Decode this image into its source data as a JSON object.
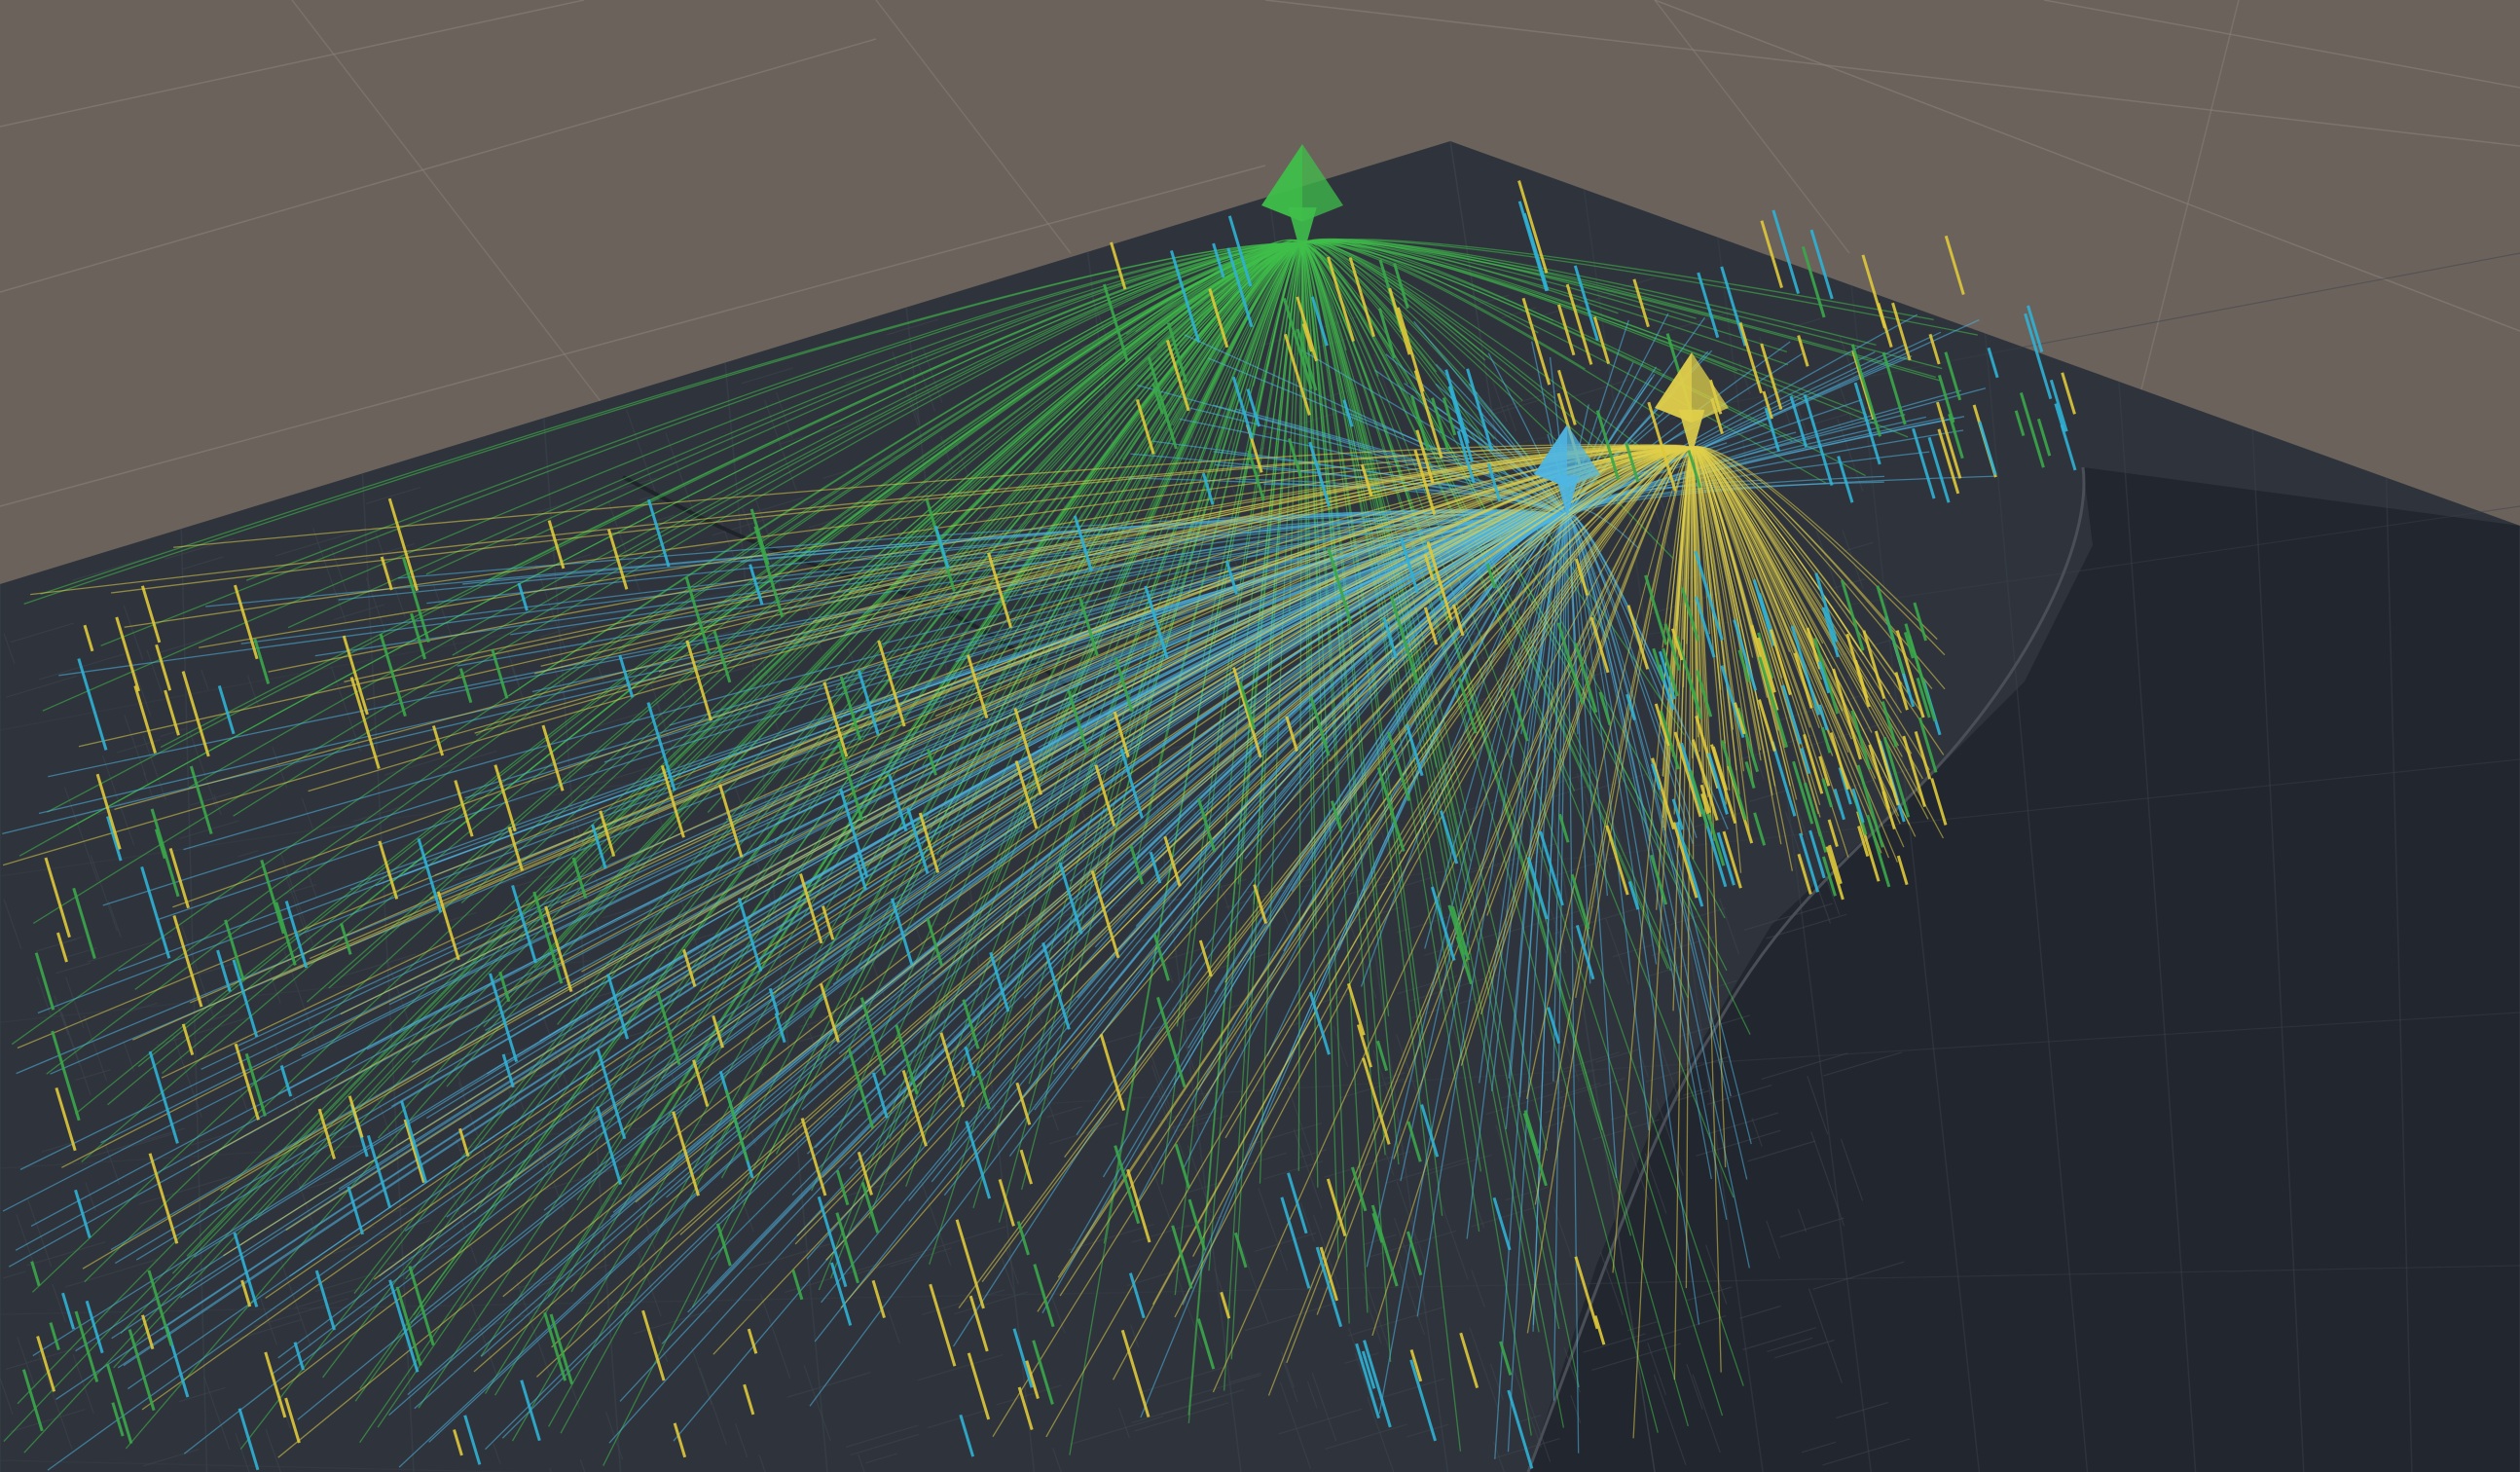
{
  "scene": {
    "colors": {
      "sky": "#6b625c",
      "sky_grid": "#8a817a",
      "map_land": "#2f343c",
      "map_water": "#22262e",
      "map_roads": "#3f454e",
      "map_grid": "#3a4049",
      "shoreline": "#4a4f57"
    },
    "hubs": [
      {
        "name": "green",
        "color": "#3fbf4a",
        "marker": "green-pyramid-icon"
      },
      {
        "name": "blue",
        "color": "#4fb6e3",
        "marker": "blue-pyramid-icon"
      },
      {
        "name": "yellow",
        "color": "#e0cf4a",
        "marker": "yellow-pyramid-icon"
      }
    ],
    "spike_colors": [
      "#2fb2d6",
      "#e0c93a",
      "#3aa84a"
    ]
  }
}
